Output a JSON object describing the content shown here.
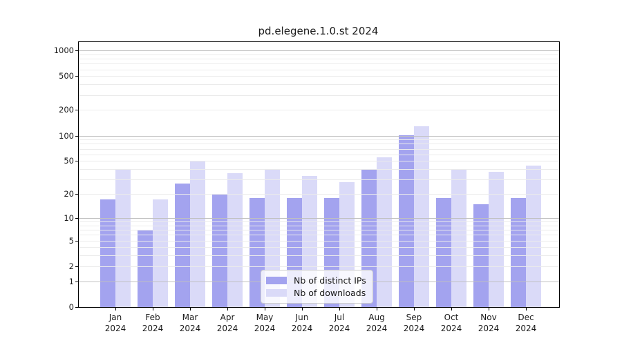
{
  "chart_data": {
    "type": "bar",
    "title": "pd.elegene.1.0.st 2024",
    "categories": [
      "Jan 2024",
      "Feb 2024",
      "Mar 2024",
      "Apr 2024",
      "May 2024",
      "Jun 2024",
      "Jul 2024",
      "Aug 2024",
      "Sep 2024",
      "Oct 2024",
      "Nov 2024",
      "Dec 2024"
    ],
    "series": [
      {
        "name": "Nb of distinct IPs",
        "color": "#a3a3ef",
        "values": [
          17,
          7,
          27,
          20,
          18,
          18,
          18,
          40,
          101,
          18,
          15,
          18
        ]
      },
      {
        "name": "Nb of downloads",
        "color": "#dadaf8",
        "values": [
          39,
          17,
          50,
          36,
          39,
          33,
          28,
          55,
          130,
          39,
          37,
          44
        ]
      }
    ],
    "xlabel": "",
    "ylabel": "",
    "yscale": "log1p",
    "yticks": [
      0,
      1,
      2,
      5,
      10,
      20,
      50,
      100,
      200,
      500,
      1000
    ],
    "ylim": [
      0,
      1250
    ],
    "grid": true,
    "legend_position": "lower-center-inside",
    "colors": {
      "axis": "#000000",
      "major_grid": "#c0c0c0",
      "minor_grid": "#ebebeb",
      "background": "#ffffff",
      "text": "#1a1a1a"
    }
  }
}
